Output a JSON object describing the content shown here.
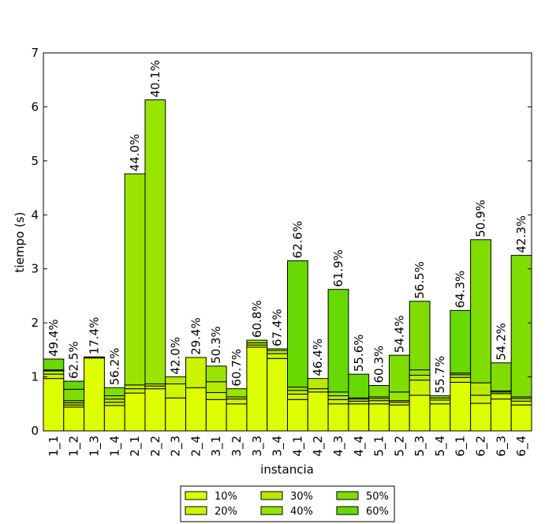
{
  "chart_data": {
    "type": "stacked_bar",
    "xlabel": "instancia",
    "ylabel": "tiempo (s)",
    "categories": [
      "1_1",
      "1_2",
      "1_3",
      "1_4",
      "2_1",
      "2_2",
      "2_3",
      "2_4",
      "3_1",
      "3_2",
      "3_3",
      "3_4",
      "4_1",
      "4_2",
      "4_3",
      "4_4",
      "5_1",
      "5_2",
      "5_3",
      "5_4",
      "6_1",
      "6_2",
      "6_3",
      "6_4"
    ],
    "series": [
      {
        "name": "10%",
        "color": "#ddff00",
        "values": [
          0.97,
          0.44,
          1.35,
          0.47,
          0.7,
          0.78,
          0.61,
          0.8,
          0.58,
          0.5,
          1.55,
          1.34,
          0.58,
          0.72,
          0.5,
          0.5,
          0.5,
          0.48,
          0.66,
          0.5,
          0.9,
          0.51,
          0.59,
          0.48
        ]
      },
      {
        "name": "20%",
        "color": "#ccf500",
        "values": [
          0.08,
          0.04,
          0.01,
          0.06,
          0.08,
          0.05,
          0.26,
          0.56,
          0.13,
          0.09,
          0.04,
          0.09,
          0.1,
          0.06,
          0.08,
          0.05,
          0.06,
          0.05,
          0.28,
          0.07,
          0.09,
          0.15,
          0.1,
          0.07
        ]
      },
      {
        "name": "30%",
        "color": "#b8eb00",
        "values": [
          0.06,
          0.04,
          0.01,
          0.06,
          0.07,
          0.04,
          0.13,
          0,
          0.2,
          0.04,
          0.04,
          0.06,
          0.07,
          0.19,
          0.07,
          0.04,
          0.04,
          0.03,
          0.09,
          0.04,
          0.05,
          0.23,
          0.03,
          0.05
        ]
      },
      {
        "name": "40%",
        "color": "#99e400",
        "values": [
          0.01,
          0.04,
          0,
          0.06,
          3.91,
          5.26,
          0,
          0,
          0.29,
          0.15,
          0.05,
          0.03,
          0.06,
          0,
          0.07,
          0.02,
          0.03,
          0.16,
          0.1,
          0.04,
          0.03,
          0,
          0.02,
          0.03
        ]
      },
      {
        "name": "50%",
        "color": "#80dd00",
        "values": [
          0.01,
          0.21,
          0,
          0.15,
          0,
          0,
          0,
          0,
          0,
          0,
          0,
          0,
          0,
          0,
          0,
          0,
          0.21,
          0.68,
          1.27,
          0,
          0,
          2.65,
          0.52,
          2.62
        ]
      },
      {
        "name": "60%",
        "color": "#66d900",
        "values": [
          0.2,
          0.15,
          0,
          0,
          0,
          0,
          0,
          0,
          0,
          0,
          0,
          0,
          2.34,
          0,
          1.9,
          0.44,
          0,
          0,
          0,
          0,
          1.16,
          0,
          0,
          0
        ]
      }
    ],
    "annotations": [
      "49.4%",
      "62.5%",
      "17.4%",
      "56.2%",
      "44.0%",
      "40.1%",
      "42.0%",
      "29.4%",
      "50.3%",
      "60.7%",
      "60.8%",
      "67.4%",
      "62.6%",
      "46.4%",
      "61.9%",
      "55.6%",
      "60.3%",
      "54.4%",
      "56.5%",
      "55.7%",
      "64.3%",
      "50.9%",
      "54.2%",
      "42.3%"
    ],
    "ylim": [
      0,
      7
    ],
    "yticks": [
      0,
      1,
      2,
      3,
      4,
      5,
      6,
      7
    ]
  }
}
